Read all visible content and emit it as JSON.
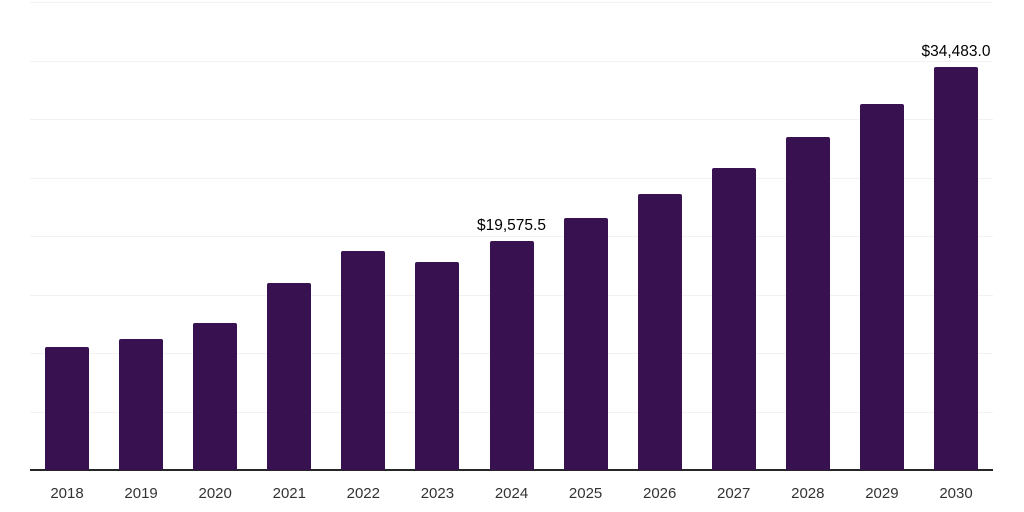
{
  "chart_data": {
    "type": "bar",
    "title": "",
    "xlabel": "",
    "ylabel": "",
    "categories": [
      "2018",
      "2019",
      "2020",
      "2021",
      "2022",
      "2023",
      "2024",
      "2025",
      "2026",
      "2027",
      "2028",
      "2029",
      "2030"
    ],
    "values": [
      10500,
      11200,
      12600,
      16000,
      18700,
      17800,
      19575.5,
      21500,
      23600,
      25800,
      28500,
      31300,
      34483.0
    ],
    "labeled_points": [
      {
        "category": "2024",
        "label": "$19,575.5"
      },
      {
        "category": "2030",
        "label": "$34,483.0"
      }
    ],
    "ylim": [
      0,
      40000
    ],
    "gridline_step": 5000,
    "grid": "horizontal-only",
    "legend_position": "none",
    "y_axis_tick_labels_visible": false,
    "colors": {
      "bar": "#381250",
      "axis_line": "#262626",
      "gridline": "#f2f2f2",
      "tick_label": "#333333",
      "data_label": "#000000",
      "background": "#ffffff"
    }
  }
}
